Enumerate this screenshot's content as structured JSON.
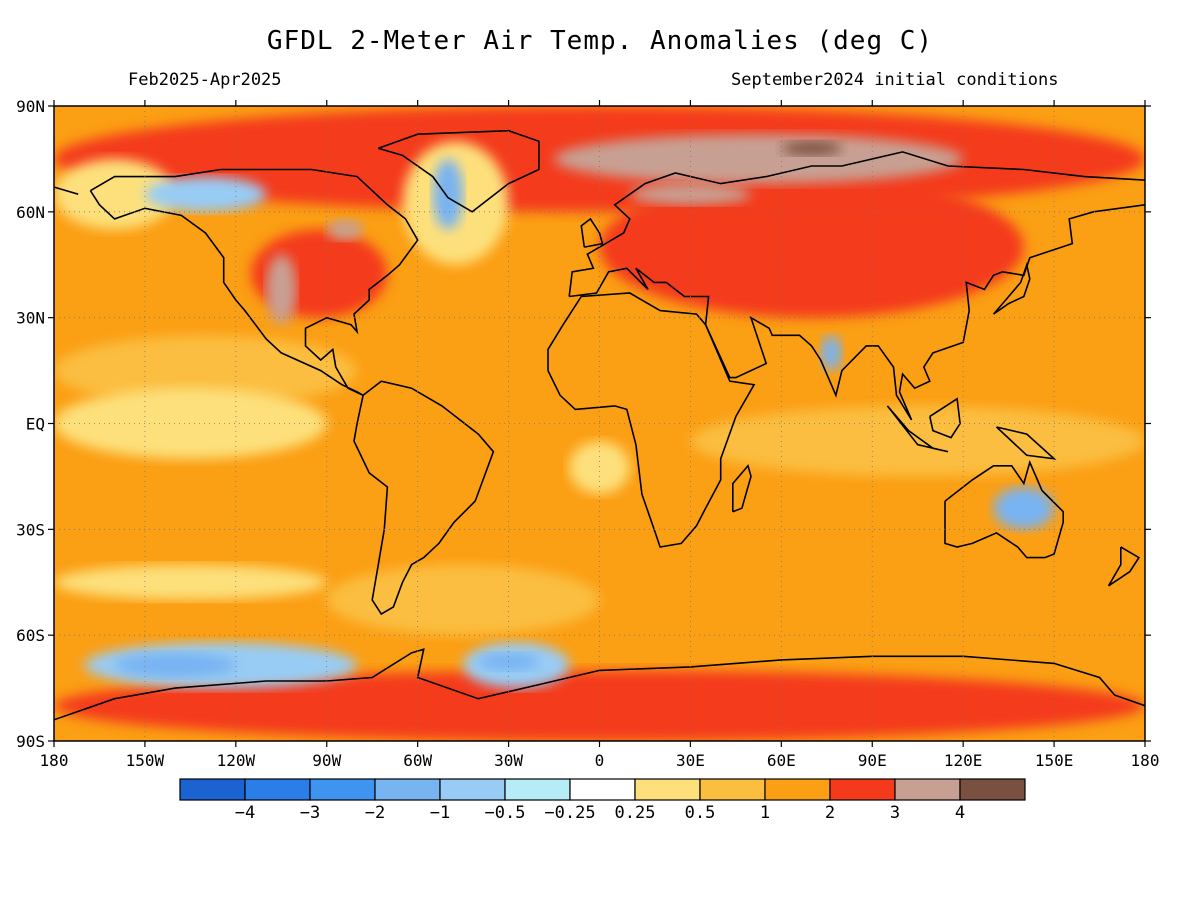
{
  "title": "GFDL 2-Meter Air Temp. Anomalies (deg C)",
  "period": "Feb2025-Apr2025",
  "init": "September2024 initial conditions",
  "map": {
    "lon_range": [
      -180,
      180
    ],
    "lat_range": [
      -90,
      90
    ],
    "projection": "equirectangular",
    "grid": "dotted",
    "lat_ticks": [
      {
        "lat": 90,
        "label": "90N"
      },
      {
        "lat": 60,
        "label": "60N"
      },
      {
        "lat": 30,
        "label": "30N"
      },
      {
        "lat": 0,
        "label": "EQ"
      },
      {
        "lat": -30,
        "label": "30S"
      },
      {
        "lat": -60,
        "label": "60S"
      },
      {
        "lat": -90,
        "label": "90S"
      }
    ],
    "lon_ticks": [
      {
        "lon": -180,
        "label": "180"
      },
      {
        "lon": -150,
        "label": "150W"
      },
      {
        "lon": -120,
        "label": "120W"
      },
      {
        "lon": -90,
        "label": "90W"
      },
      {
        "lon": -60,
        "label": "60W"
      },
      {
        "lon": -30,
        "label": "30W"
      },
      {
        "lon": 0,
        "label": "0"
      },
      {
        "lon": 30,
        "label": "30E"
      },
      {
        "lon": 60,
        "label": "60E"
      },
      {
        "lon": 90,
        "label": "90E"
      },
      {
        "lon": 120,
        "label": "120E"
      },
      {
        "lon": 150,
        "label": "150E"
      },
      {
        "lon": 180,
        "label": "180"
      }
    ]
  },
  "colorbar": {
    "colors": [
      "#1a63d0",
      "#2b7de8",
      "#3f94ef",
      "#78b3f2",
      "#98ccf5",
      "#b6ecf7",
      "#ffffff",
      "#fde07c",
      "#fbbe3f",
      "#fb9f14",
      "#f43a1a",
      "#c8a093",
      "#7a5040"
    ],
    "labels": [
      "-4",
      "-3",
      "-2",
      "-1",
      "-0.5",
      "-0.25",
      "0.25",
      "0.5",
      "1",
      "2",
      "3",
      "4"
    ]
  },
  "anomaly_regions": [
    {
      "level": "1",
      "lon": [
        -180,
        180
      ],
      "lat": [
        -90,
        90
      ],
      "note": "background"
    },
    {
      "level": "2",
      "lon": [
        -180,
        180
      ],
      "lat": [
        60,
        90
      ]
    },
    {
      "level": "2",
      "lon": [
        0,
        140
      ],
      "lat": [
        30,
        70
      ]
    },
    {
      "level": "2",
      "lon": [
        -115,
        -70
      ],
      "lat": [
        30,
        55
      ]
    },
    {
      "level": "2",
      "lon": [
        -180,
        180
      ],
      "lat": [
        -90,
        -70
      ]
    },
    {
      "level": "3",
      "lon": [
        -15,
        120
      ],
      "lat": [
        68,
        82
      ]
    },
    {
      "level": "3",
      "lon": [
        10,
        50
      ],
      "lat": [
        62,
        68
      ]
    },
    {
      "level": "3",
      "lon": [
        -110,
        -100
      ],
      "lat": [
        28,
        48
      ]
    },
    {
      "level": "3",
      "lon": [
        -90,
        -78
      ],
      "lat": [
        52,
        58
      ]
    },
    {
      "level": "4",
      "lon": [
        60,
        80
      ],
      "lat": [
        76,
        80
      ]
    },
    {
      "level": "0.5",
      "lon": [
        -180,
        -80
      ],
      "lat": [
        5,
        25
      ]
    },
    {
      "level": "0.5",
      "lon": [
        -90,
        0
      ],
      "lat": [
        -60,
        -40
      ]
    },
    {
      "level": "0.5",
      "lon": [
        30,
        180
      ],
      "lat": [
        -15,
        5
      ]
    },
    {
      "level": "0.25",
      "lon": [
        -180,
        -90
      ],
      "lat": [
        -10,
        10
      ]
    },
    {
      "level": "0.25",
      "lon": [
        -180,
        -90
      ],
      "lat": [
        -50,
        -40
      ]
    },
    {
      "level": "0.25",
      "lon": [
        -10,
        10
      ],
      "lat": [
        -20,
        -5
      ]
    },
    {
      "level": "0.25",
      "lon": [
        -180,
        -140
      ],
      "lat": [
        55,
        75
      ]
    },
    {
      "level": "0.25",
      "lon": [
        -65,
        -30
      ],
      "lat": [
        45,
        80
      ]
    },
    {
      "level": "-0.5",
      "lon": [
        -170,
        -80
      ],
      "lat": [
        -75,
        -62
      ]
    },
    {
      "level": "-0.5",
      "lon": [
        -45,
        -10
      ],
      "lat": [
        -75,
        -62
      ]
    },
    {
      "level": "-0.5",
      "lon": [
        -150,
        -110
      ],
      "lat": [
        60,
        70
      ]
    },
    {
      "level": "-1",
      "lon": [
        -160,
        -120
      ],
      "lat": [
        -72,
        -65
      ]
    },
    {
      "level": "-1",
      "lon": [
        -40,
        -20
      ],
      "lat": [
        -70,
        -65
      ]
    },
    {
      "level": "-1",
      "lon": [
        130,
        150
      ],
      "lat": [
        -30,
        -18
      ]
    },
    {
      "level": "-1",
      "lon": [
        -55,
        -45
      ],
      "lat": [
        55,
        75
      ]
    },
    {
      "level": "-1",
      "lon": [
        73,
        80
      ],
      "lat": [
        15,
        25
      ]
    }
  ]
}
